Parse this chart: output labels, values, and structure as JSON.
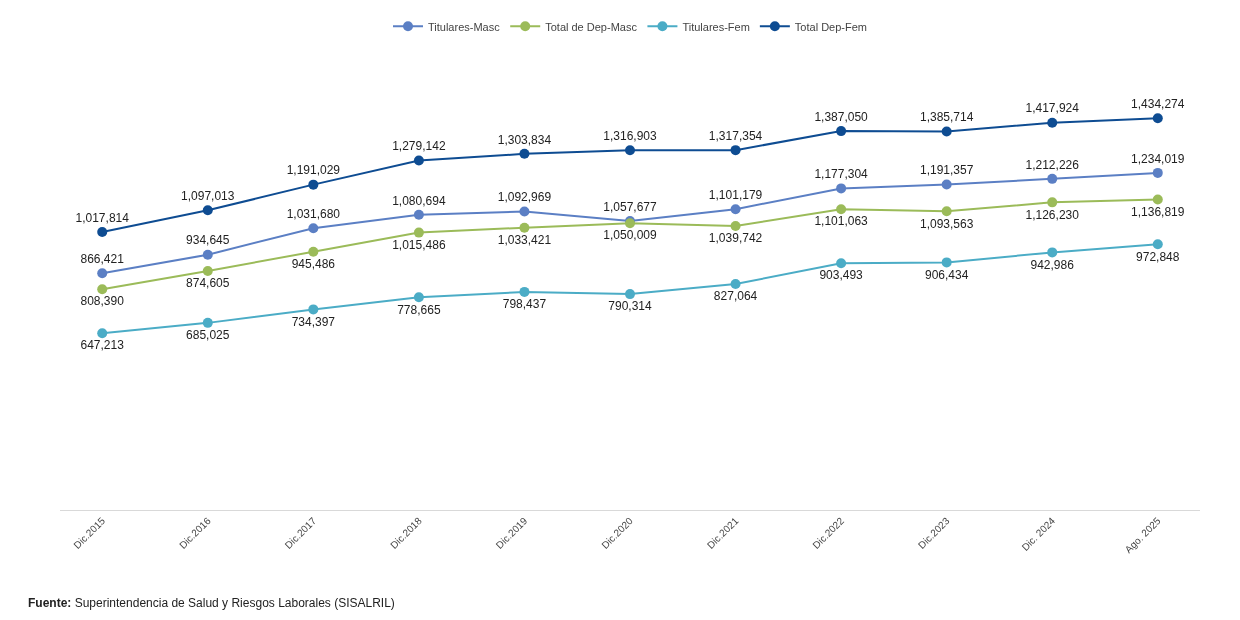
{
  "chart_data": {
    "type": "line",
    "categories": [
      "Dic.2015",
      "Dic.2016",
      "Dic.2017",
      "Dic.2018",
      "Dic.2019",
      "Dic.2020",
      "Dic.2021",
      "Dic.2022",
      "Dic.2023",
      "Dic. 2024",
      "Ago. 2025"
    ],
    "series": [
      {
        "name": "Titulares-Masc",
        "color": "#5b7fc4",
        "values": [
          866421,
          934645,
          1031680,
          1080694,
          1092969,
          1057677,
          1101179,
          1177304,
          1191357,
          1212226,
          1234019
        ],
        "value_labels": [
          "866,421",
          "934,645",
          "1,031,680",
          "1,080,694",
          "1,092,969",
          "1,057,677",
          "1,101,179",
          "1,177,304",
          "1,191,357",
          "1,212,226",
          "1,234,019"
        ]
      },
      {
        "name": "Total de Dep-Masc",
        "color": "#9bbb59",
        "values": [
          808390,
          874605,
          945486,
          1015486,
          1033421,
          1050009,
          1039742,
          1101063,
          1093563,
          1126230,
          1136819
        ],
        "value_labels": [
          "808,390",
          "874,605",
          "945,486",
          "1,015,486",
          "1,033,421",
          "1,050,009",
          "1,039,742",
          "1,101,063",
          "1,093,563",
          "1,126,230",
          "1,136,819"
        ]
      },
      {
        "name": "Titulares-Fem",
        "color": "#4bacc6",
        "values": [
          647213,
          685025,
          734397,
          778665,
          798437,
          790314,
          827064,
          903493,
          906434,
          942986,
          972848
        ],
        "value_labels": [
          "647,213",
          "685,025",
          "734,397",
          "778,665",
          "798,437",
          "790,314",
          "827,064",
          "903,493",
          "906,434",
          "942,986",
          "972,848"
        ]
      },
      {
        "name": "Total Dep-Fem",
        "color": "#0e4c92",
        "values": [
          1017814,
          1097013,
          1191029,
          1279142,
          1303834,
          1316903,
          1317354,
          1387050,
          1385714,
          1417924,
          1434274
        ],
        "value_labels": [
          "1,017,814",
          "1,097,013",
          "1,191,029",
          "1,279,142",
          "1,303,834",
          "1,316,903",
          "1,317,354",
          "1,387,050",
          "1,385,714",
          "1,417,924",
          "1,434,274"
        ]
      }
    ],
    "tick_labels": "x",
    "legend": "top",
    "marker": "circle",
    "line_style": "solid",
    "annotations": [
      "Fuente: Superintendencia de Salud y Riesgos Laborales (SISALRIL)"
    ]
  }
}
